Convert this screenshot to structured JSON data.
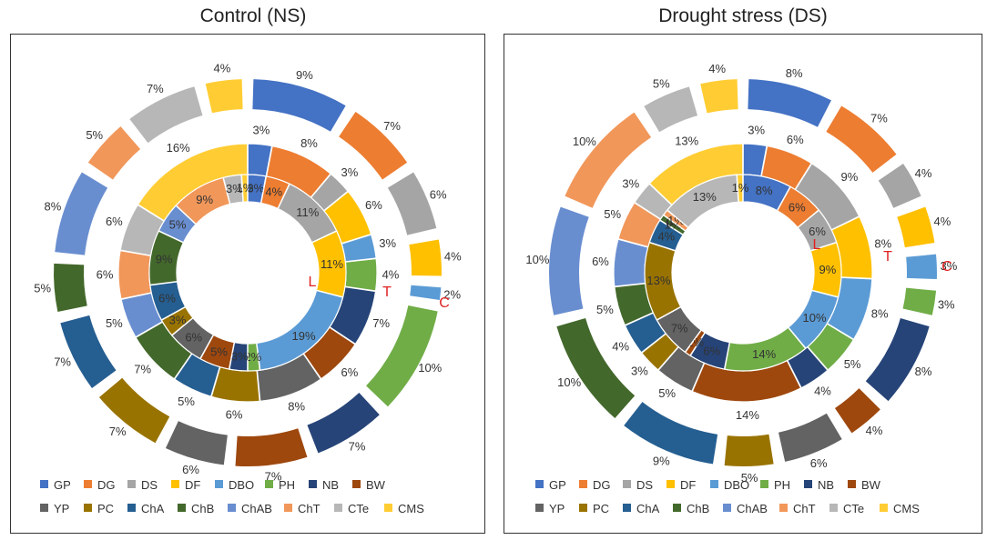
{
  "colors": {
    "GP": "#4472C4",
    "DG": "#ED7D31",
    "DS": "#A5A5A5",
    "DF": "#FFC000",
    "DBO": "#5B9BD5",
    "PH": "#70AD47",
    "NB": "#264478",
    "BW": "#9E480E",
    "YP": "#636363",
    "PC": "#997300",
    "ChA": "#255E91",
    "ChB": "#43682B",
    "ChAB": "#698ED0",
    "ChT": "#F1975A",
    "CTe": "#B7B7B7",
    "CMS": "#FFCD33"
  },
  "chart_data": [
    {
      "type": "pie",
      "subtype": "multi-ring donut",
      "title": "Control (NS)",
      "categories": [
        "GP",
        "DG",
        "DS",
        "DF",
        "DBO",
        "PH",
        "NB",
        "BW",
        "YP",
        "PC",
        "ChA",
        "ChB",
        "ChAB",
        "ChT",
        "CTe",
        "CMS"
      ],
      "rings": [
        {
          "name": "C",
          "label": "C",
          "values": [
            9,
            7,
            6,
            4,
            2,
            10,
            7,
            7,
            6,
            7,
            7,
            5,
            8,
            5,
            7,
            4
          ],
          "labels": [
            "9%",
            "7%",
            "6%",
            "4%",
            "2%",
            "10%",
            "7%",
            "7%",
            "6%",
            "7%",
            "7%",
            "5%",
            "8%",
            "5%",
            "7%",
            "4%"
          ]
        },
        {
          "name": "T",
          "label": "T",
          "series": [
            "GP",
            "DG",
            "DS",
            "DF",
            "DBO",
            "PH",
            "NB",
            "BW",
            "YP",
            "PC",
            "ChA",
            "ChB",
            "ChAB",
            "ChT",
            "CTe",
            "CMS"
          ],
          "values": [
            3,
            8,
            3,
            6,
            3,
            4,
            7,
            6,
            8,
            6,
            5,
            7,
            5,
            6,
            6,
            16
          ],
          "labels": [
            "3%",
            "8%",
            "3%",
            "6%",
            "3%",
            "4%",
            "7%",
            "6%",
            "8%",
            "6%",
            "5%",
            "7%",
            "5%",
            "6%",
            "6%",
            "16%"
          ]
        },
        {
          "name": "L",
          "label": "L",
          "series": [
            "GP",
            "DG",
            "DS",
            "DF",
            "DBO",
            "PH",
            "NB",
            "BW",
            "YP",
            "PC",
            "ChA",
            "ChB",
            "ChAB",
            "ChT",
            "CTe",
            "CMS"
          ],
          "values": [
            3,
            4,
            11,
            11,
            19,
            2,
            3,
            5,
            6,
            3,
            6,
            9,
            5,
            9,
            3,
            1
          ],
          "labels": [
            "3%",
            "4%",
            "11%",
            "11%",
            "19%",
            "2%",
            "3%",
            "5%",
            "6%",
            "3%",
            "6%",
            "9%",
            "5%",
            "9%",
            "3%",
            "1%"
          ]
        }
      ]
    },
    {
      "type": "pie",
      "subtype": "multi-ring donut",
      "title": "Drought stress (DS)",
      "categories": [
        "GP",
        "DG",
        "DS",
        "DF",
        "DBO",
        "PH",
        "NB",
        "BW",
        "YP",
        "PC",
        "ChA",
        "ChB",
        "ChAB",
        "ChT",
        "CTe",
        "CMS"
      ],
      "rings": [
        {
          "name": "C",
          "label": "C",
          "values": [
            8,
            7,
            4,
            4,
            3,
            3,
            8,
            4,
            6,
            5,
            9,
            10,
            10,
            10,
            5,
            4
          ],
          "labels": [
            "8%",
            "7%",
            "4%",
            "4%",
            "3%",
            "3%",
            "8%",
            "4%",
            "6%",
            "5%",
            "9%",
            "10%",
            "10%",
            "10%",
            "5%",
            "4%"
          ]
        },
        {
          "name": "T",
          "label": "T",
          "series": [
            "GP",
            "DG",
            "DS",
            "DF",
            "DBO",
            "PH",
            "NB",
            "BW",
            "YP",
            "PC",
            "ChA",
            "ChB",
            "ChAB",
            "ChT",
            "CTe",
            "CMS"
          ],
          "values": [
            3,
            6,
            9,
            8,
            8,
            5,
            4,
            14,
            5,
            3,
            4,
            5,
            6,
            5,
            3,
            13
          ],
          "labels": [
            "3%",
            "6%",
            "9%",
            "8%",
            "8%",
            "5%",
            "4%",
            "14%",
            "5%",
            "3%",
            "4%",
            "5%",
            "6%",
            "5%",
            "3%",
            "13%"
          ]
        },
        {
          "name": "L",
          "label": "L",
          "series": [
            "GP",
            "DG",
            "DS",
            "DF",
            "DBO",
            "PH",
            "NB",
            "BW",
            "YP",
            "PC",
            "ChA",
            "ChB",
            "ChAB",
            "ChT",
            "CTe",
            "CMS"
          ],
          "values": [
            8,
            6,
            6,
            9,
            10,
            14,
            6,
            1,
            7,
            13,
            4,
            1,
            0,
            1,
            13,
            1
          ],
          "labels": [
            "8%",
            "6%",
            "6%",
            "9%",
            "10%",
            "14%",
            "6%",
            "1%",
            "7%",
            "13%",
            "4%",
            "1%",
            "0%",
            "1%",
            "13%",
            "1%"
          ]
        }
      ]
    }
  ],
  "legend": {
    "row1": [
      "GP",
      "DG",
      "DS",
      "DF",
      "DBO",
      "PH",
      "NB",
      "BW"
    ],
    "row2": [
      "YP",
      "PC",
      "ChA",
      "ChB",
      "ChAB",
      "ChT",
      "CTe",
      "CMS"
    ]
  }
}
